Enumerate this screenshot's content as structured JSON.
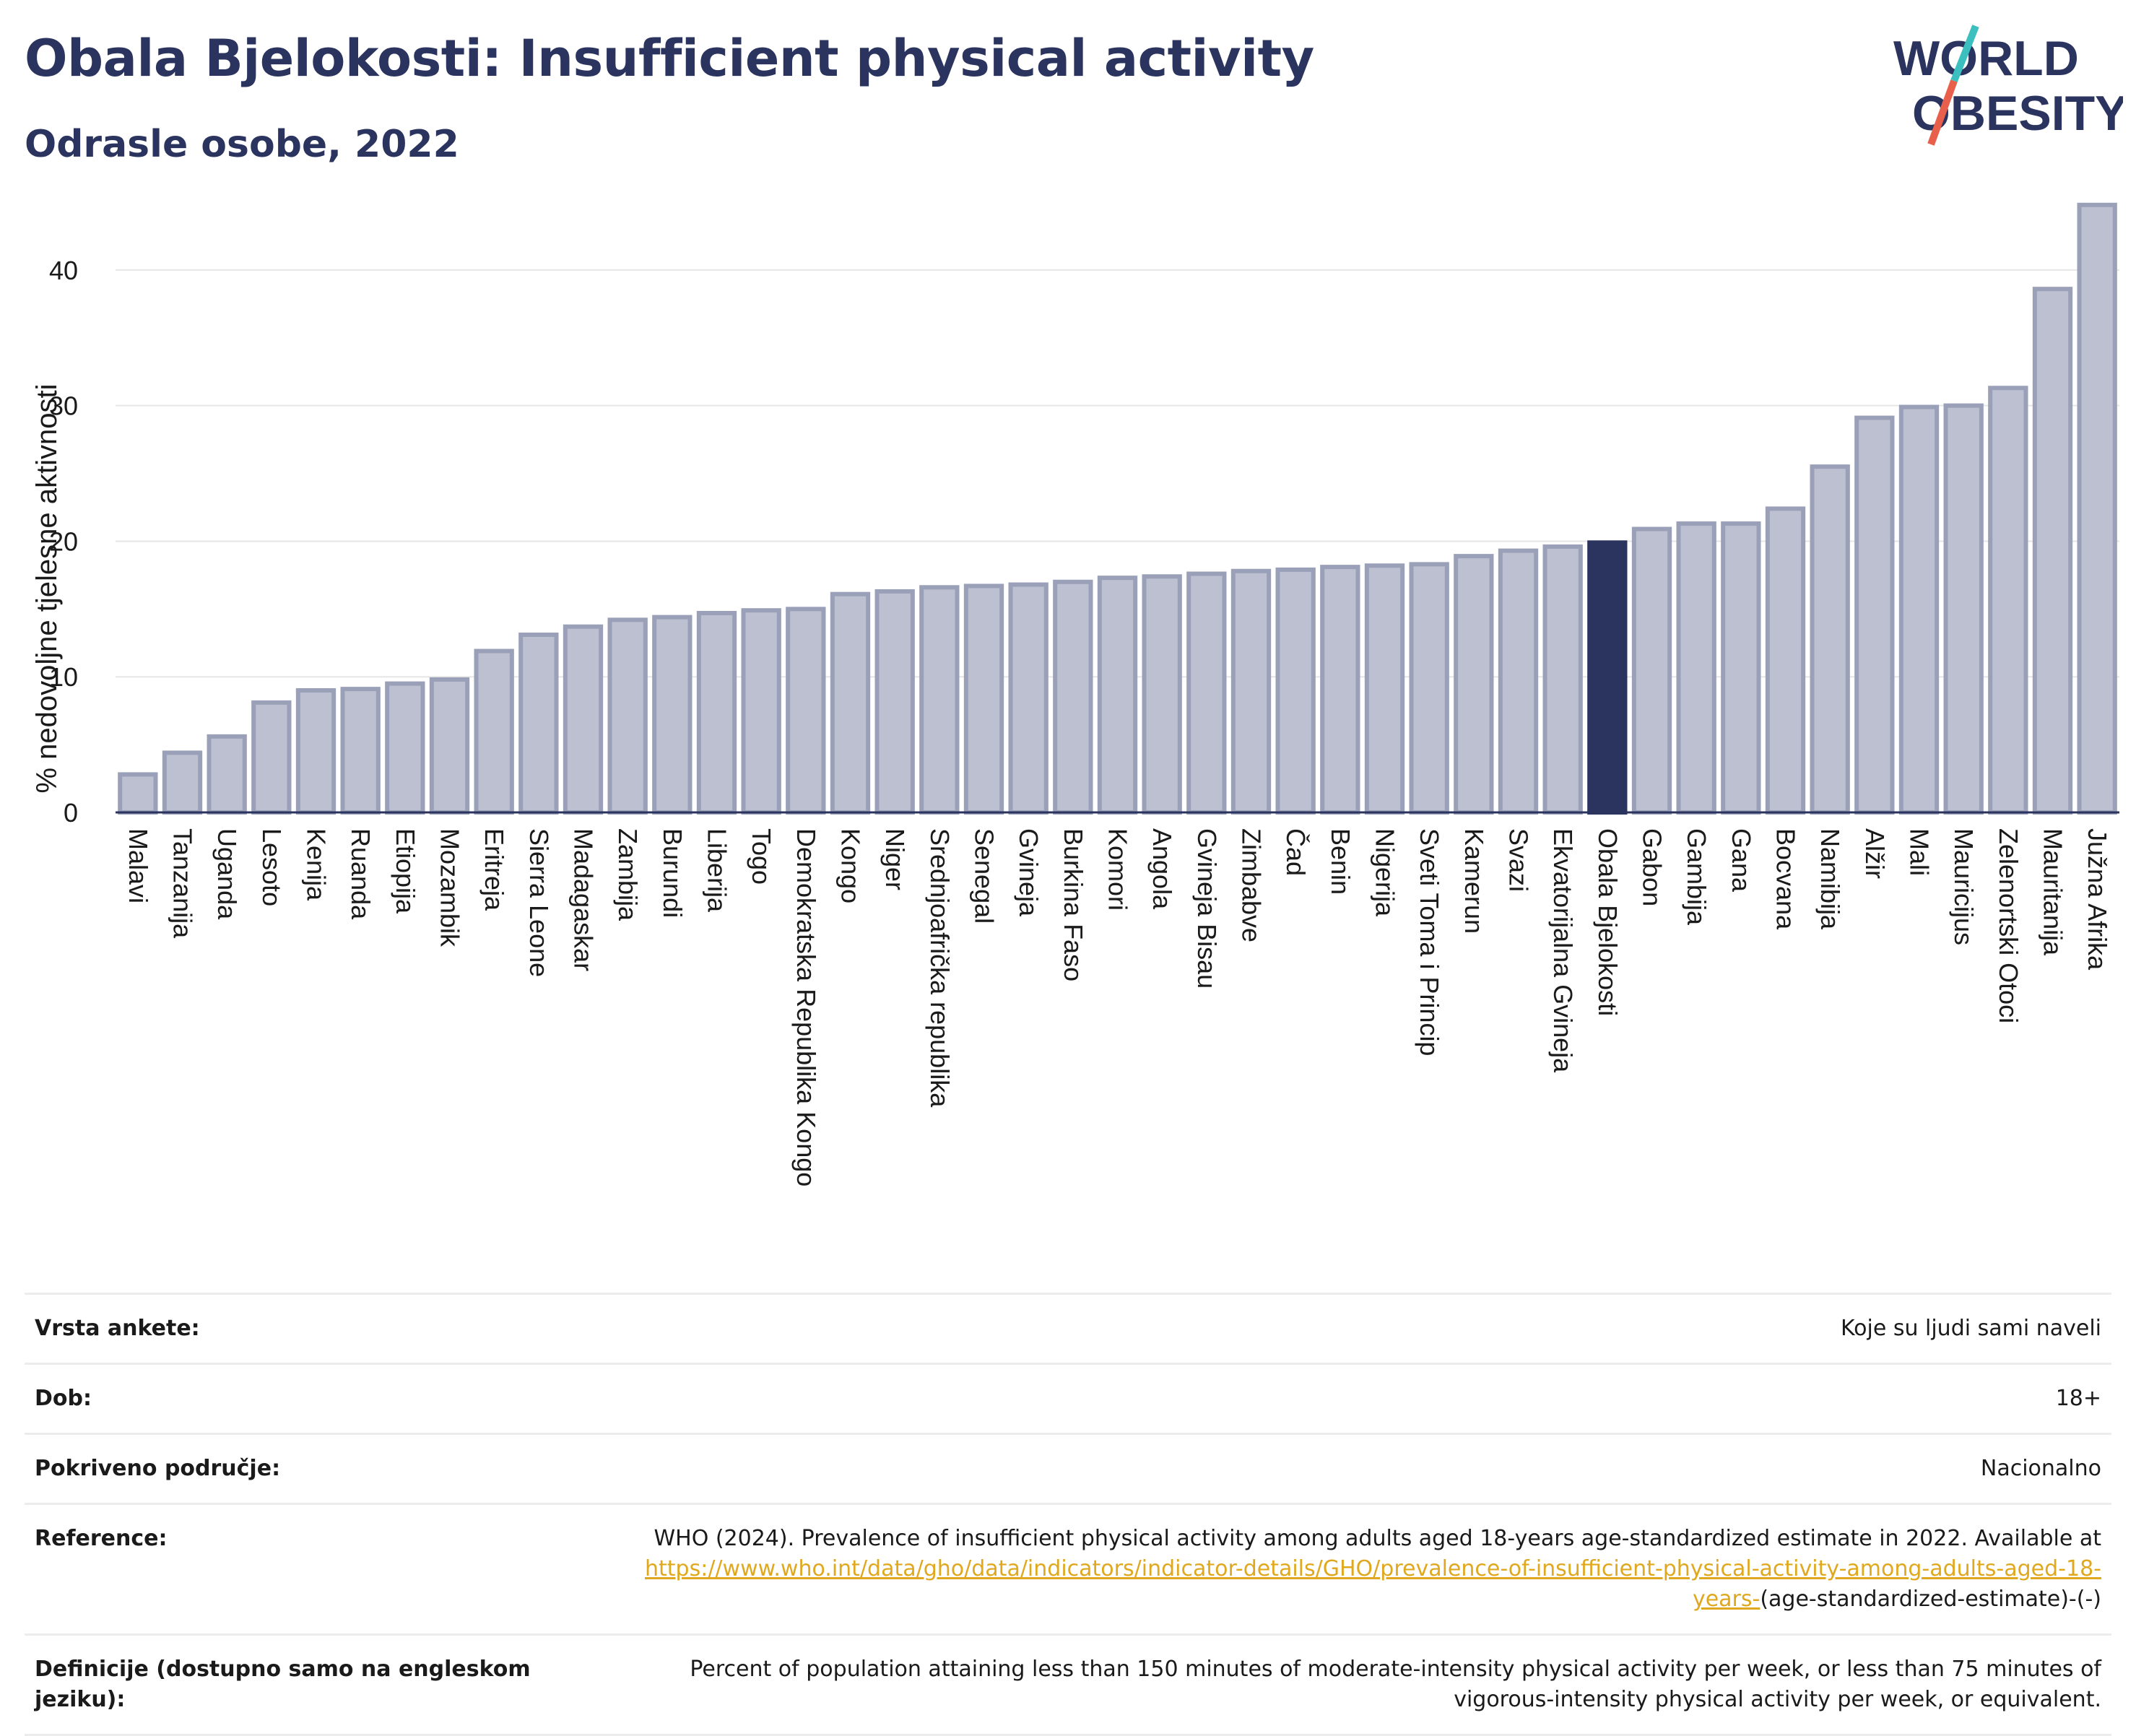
{
  "header": {
    "title": "Obala Bjelokosti: Insufficient physical activity",
    "subtitle": "Odrasle osobe, 2022"
  },
  "logo": {
    "line1": "WORLD",
    "line2": "OBESITY",
    "colors": {
      "text": "#2b345f",
      "slash_teal": "#3bbfbf",
      "slash_red": "#e8604c"
    }
  },
  "colors": {
    "bar": "#bcc0d0",
    "bar_stroke": "#9aa0b8",
    "highlight": "#2b345f",
    "gridline": "#e6e6e6",
    "axis": "#2b345f",
    "link": "#e0a81e"
  },
  "chart_data": {
    "type": "bar",
    "ylabel": "% nedovoljne tjelesne aktivnosti",
    "ylim": [
      0,
      45
    ],
    "yticks": [
      0,
      10,
      20,
      30,
      40
    ],
    "grid": true,
    "highlight": "Obala Bjelokosti",
    "categories": [
      "Malavi",
      "Tanzanija",
      "Uganda",
      "Lesoto",
      "Kenija",
      "Ruanda",
      "Etiopija",
      "Mozambik",
      "Eritreja",
      "Sierra Leone",
      "Madagaskar",
      "Zambija",
      "Burundi",
      "Liberija",
      "Togo",
      "Demokratska Republika Kongo",
      "Kongo",
      "Niger",
      "Srednjoafrička republika",
      "Senegal",
      "Gvineja",
      "Burkina Faso",
      "Komori",
      "Angola",
      "Gvineja Bisau",
      "Zimbabve",
      "Čad",
      "Benin",
      "Nigerija",
      "Sveti Toma i Princip",
      "Kamerun",
      "Svazi",
      "Ekvatorijalna Gvineja",
      "Obala Bjelokosti",
      "Gabon",
      "Gambija",
      "Gana",
      "Bocvana",
      "Namibija",
      "Alžir",
      "Mali",
      "Mauricijus",
      "Zelenortski Otoci",
      "Mauritanija",
      "Južna Afrika"
    ],
    "values": [
      2.8,
      4.4,
      5.6,
      8.1,
      9.0,
      9.1,
      9.5,
      9.8,
      11.9,
      13.1,
      13.7,
      14.2,
      14.4,
      14.7,
      14.9,
      15.0,
      16.1,
      16.3,
      16.6,
      16.7,
      16.8,
      17.0,
      17.3,
      17.4,
      17.6,
      17.8,
      17.9,
      18.1,
      18.2,
      18.3,
      18.9,
      19.3,
      19.6,
      19.9,
      20.9,
      21.3,
      21.3,
      22.4,
      25.5,
      29.1,
      29.9,
      30.0,
      31.3,
      38.6,
      44.8
    ]
  },
  "info": {
    "rows": [
      {
        "label": "Vrsta ankete:",
        "value": "Koje su ljudi sami naveli"
      },
      {
        "label": "Dob:",
        "value": "18+"
      },
      {
        "label": "Pokriveno područje:",
        "value": "Nacionalno"
      }
    ],
    "reference": {
      "label": "Reference:",
      "text": "WHO (2024). Prevalence of insufficient physical activity among adults aged 18-years age-standardized estimate in 2022. Available at",
      "link": "https://www.who.int/data/gho/data/indicators/indicator-details/GHO/prevalence-of-insufficient-physical-activity-among-adults-aged-18-years-",
      "suffix": "(age-standardized-estimate)-(-)"
    },
    "definition": {
      "label": "Definicije (dostupno samo na engleskom jeziku):",
      "value": "Percent of population attaining less than 150 minutes of moderate-intensity physical activity per week, or less than 75 minutes of vigorous-intensity physical activity per week, or equivalent."
    }
  }
}
